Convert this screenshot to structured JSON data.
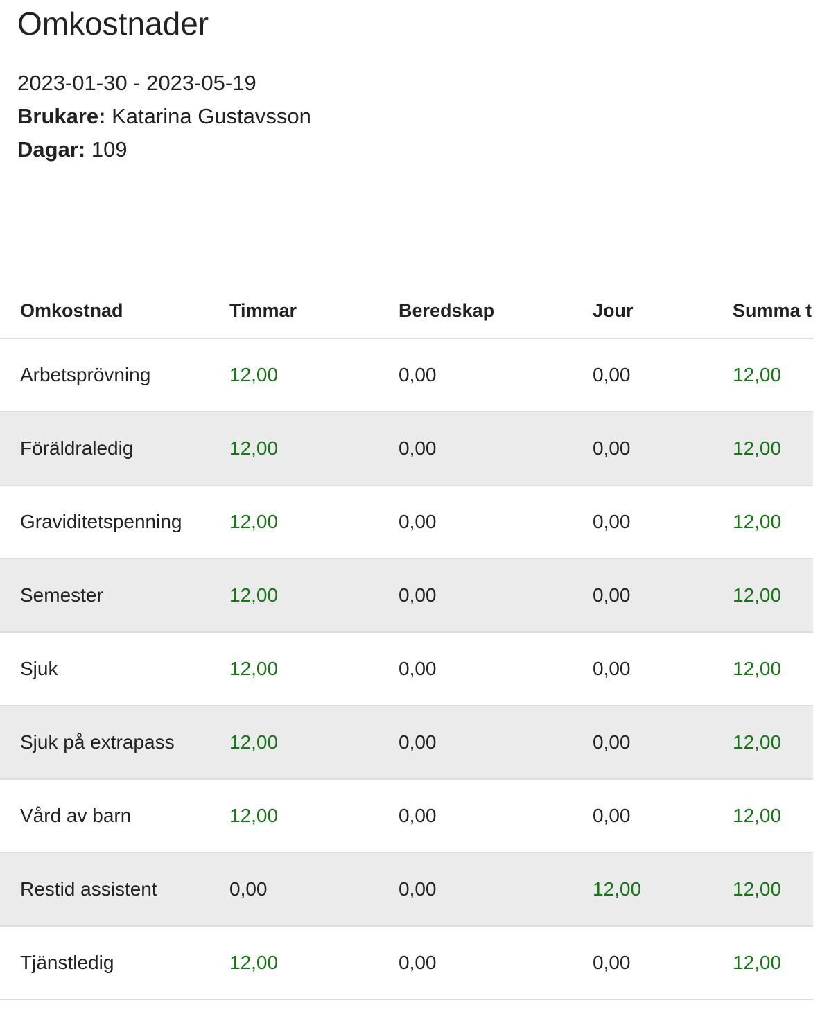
{
  "page": {
    "title": "Omkostnader",
    "period": "2023-01-30 - 2023-05-19",
    "user_label": "Brukare:",
    "user_value": "Katarina Gustavsson",
    "days_label": "Dagar:",
    "days_value": "109"
  },
  "colors": {
    "positive": "#137a13",
    "zero": "#222222",
    "alt_row": "#ebebeb"
  },
  "table": {
    "columns": [
      "Omkostnad",
      "Timmar",
      "Beredskap",
      "Jour",
      "Summa t"
    ],
    "rows": [
      [
        "Arbetsprövning",
        "12,00",
        "0,00",
        "0,00",
        "12,00"
      ],
      [
        "Föräldraledig",
        "12,00",
        "0,00",
        "0,00",
        "12,00"
      ],
      [
        "Graviditetspenning",
        "12,00",
        "0,00",
        "0,00",
        "12,00"
      ],
      [
        "Semester",
        "12,00",
        "0,00",
        "0,00",
        "12,00"
      ],
      [
        "Sjuk",
        "12,00",
        "0,00",
        "0,00",
        "12,00"
      ],
      [
        "Sjuk på extrapass",
        "12,00",
        "0,00",
        "0,00",
        "12,00"
      ],
      [
        "Vård av barn",
        "12,00",
        "0,00",
        "0,00",
        "12,00"
      ],
      [
        "Restid assistent",
        "0,00",
        "0,00",
        "12,00",
        "12,00"
      ],
      [
        "Tjänstledig",
        "12,00",
        "0,00",
        "0,00",
        "12,00"
      ]
    ]
  }
}
